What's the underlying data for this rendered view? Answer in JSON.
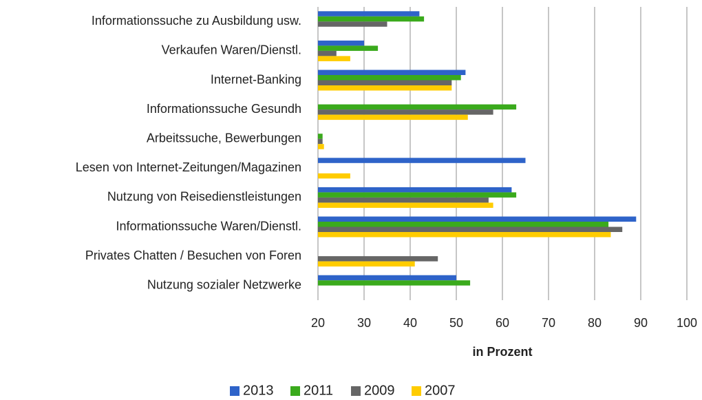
{
  "chart_data": {
    "type": "bar",
    "orientation": "horizontal",
    "x_label": "in Prozent",
    "categories": [
      "Informationssuche zu Ausbildung usw.",
      "Verkaufen Waren/Dienstl.",
      "Internet-Banking",
      "Informationssuche  Gesundh",
      "Arbeitssuche, Bewerbungen",
      "Lesen von Internet-Zeitungen/Magazinen",
      "Nutzung von Reisedienstleistungen",
      "Informationssuche  Waren/Dienstl.",
      "Privates Chatten / Besuchen von Foren",
      "Nutzung sozialer Netzwerke"
    ],
    "series": [
      {
        "name": "2013",
        "color": "#2e63c9",
        "values": [
          42,
          30,
          52,
          null,
          null,
          65,
          62,
          89,
          null,
          50
        ]
      },
      {
        "name": "2011",
        "color": "#3aaa1c",
        "values": [
          43,
          33,
          51,
          63,
          21,
          null,
          63,
          83,
          null,
          53
        ]
      },
      {
        "name": "2009",
        "color": "#666666",
        "values": [
          35,
          24,
          49,
          58,
          21,
          null,
          57,
          86,
          46,
          null
        ]
      },
      {
        "name": "2007",
        "color": "#ffcc00",
        "values": [
          null,
          27,
          49,
          52.5,
          21.3,
          27,
          58,
          83.5,
          41,
          null
        ]
      }
    ],
    "xlim": [
      20,
      100
    ],
    "xticks": [
      20,
      30,
      40,
      50,
      60,
      70,
      80,
      90,
      100
    ],
    "grid": true,
    "legend": "bottom"
  }
}
